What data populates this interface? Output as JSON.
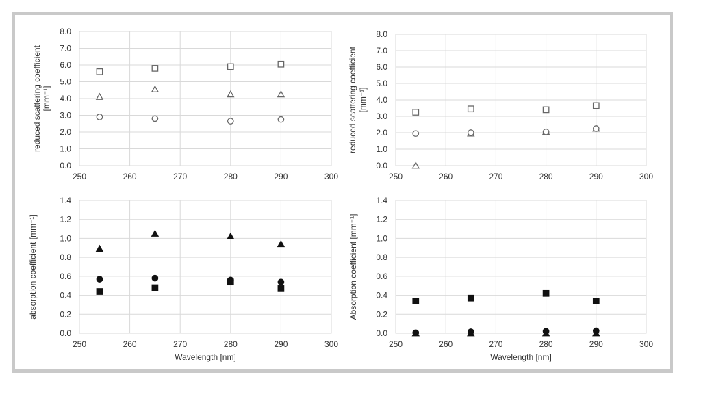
{
  "chart_data": [
    {
      "type": "scatter",
      "title": "",
      "ylabel": "reduced scattering coefficient",
      "ylabel_unit": "[mm⁻¹]",
      "xlabel": "",
      "xlim": [
        250,
        300
      ],
      "ylim": [
        0,
        8
      ],
      "xticks": [
        "250",
        "260",
        "270",
        "280",
        "290",
        "300"
      ],
      "yticks": [
        "0.0",
        "1.0",
        "2.0",
        "3.0",
        "4.0",
        "5.0",
        "6.0",
        "7.0",
        "8.0"
      ],
      "grid": true,
      "series": [
        {
          "marker": "square-open",
          "x": [
            254,
            265,
            280,
            290
          ],
          "y": [
            5.6,
            5.8,
            5.9,
            6.05
          ]
        },
        {
          "marker": "triangle-open",
          "x": [
            254,
            265,
            280,
            290
          ],
          "y": [
            4.1,
            4.55,
            4.25,
            4.25
          ]
        },
        {
          "marker": "circle-open",
          "x": [
            254,
            265,
            280,
            290
          ],
          "y": [
            2.9,
            2.8,
            2.65,
            2.75
          ]
        }
      ]
    },
    {
      "type": "scatter",
      "title": "",
      "ylabel": "reduced scattering coefficient",
      "ylabel_unit": "[mm⁻¹]",
      "xlabel": "",
      "xlim": [
        250,
        300
      ],
      "ylim": [
        0,
        8
      ],
      "xticks": [
        "250",
        "260",
        "270",
        "280",
        "290",
        "300"
      ],
      "yticks": [
        "0.0",
        "1.0",
        "2.0",
        "3.0",
        "4.0",
        "5.0",
        "6.0",
        "7.0",
        "8.0"
      ],
      "grid": true,
      "series": [
        {
          "marker": "square-open",
          "x": [
            254,
            265,
            280,
            290
          ],
          "y": [
            3.25,
            3.45,
            3.4,
            3.65
          ]
        },
        {
          "marker": "triangle-open",
          "x": [
            254,
            265,
            280,
            290
          ],
          "y": [
            0.0,
            1.95,
            2.05,
            2.25
          ]
        },
        {
          "marker": "circle-open",
          "x": [
            254,
            265,
            280,
            290
          ],
          "y": [
            1.95,
            2.0,
            2.05,
            2.25
          ]
        }
      ]
    },
    {
      "type": "scatter",
      "title": "",
      "ylabel": "absorption coefficient [mm⁻¹]",
      "ylabel_unit": "",
      "xlabel": "Wavelength [nm]",
      "xlim": [
        250,
        300
      ],
      "ylim": [
        0,
        1.4
      ],
      "xticks": [
        "250",
        "260",
        "270",
        "280",
        "290",
        "300"
      ],
      "yticks": [
        "0.0",
        "0.2",
        "0.4",
        "0.6",
        "0.8",
        "1.0",
        "1.2",
        "1.4"
      ],
      "grid": true,
      "series": [
        {
          "marker": "triangle-filled",
          "x": [
            254,
            265,
            280,
            290
          ],
          "y": [
            0.89,
            1.05,
            1.02,
            0.94
          ]
        },
        {
          "marker": "circle-filled",
          "x": [
            254,
            265,
            280,
            290
          ],
          "y": [
            0.57,
            0.58,
            0.56,
            0.54
          ]
        },
        {
          "marker": "square-filled",
          "x": [
            254,
            265,
            280,
            290
          ],
          "y": [
            0.44,
            0.48,
            0.54,
            0.47
          ]
        }
      ]
    },
    {
      "type": "scatter",
      "title": "",
      "ylabel": "Absorption  coefficient [mm⁻¹]",
      "ylabel_unit": "",
      "xlabel": "Wavelength [nm]",
      "xlim": [
        250,
        300
      ],
      "ylim": [
        0,
        1.4
      ],
      "xticks": [
        "250",
        "260",
        "270",
        "280",
        "290",
        "300"
      ],
      "yticks": [
        "0.0",
        "0.2",
        "0.4",
        "0.6",
        "0.8",
        "1.0",
        "1.2",
        "1.4"
      ],
      "grid": true,
      "series": [
        {
          "marker": "square-filled",
          "x": [
            254,
            265,
            280,
            290
          ],
          "y": [
            0.34,
            0.37,
            0.42,
            0.34
          ]
        },
        {
          "marker": "circle-filled",
          "x": [
            254,
            265,
            280,
            290
          ],
          "y": [
            0.005,
            0.015,
            0.02,
            0.025
          ]
        },
        {
          "marker": "triangle-filled",
          "x": [
            254,
            265,
            280,
            290
          ],
          "y": [
            0.0,
            0.0,
            0.0,
            0.0
          ]
        }
      ]
    }
  ]
}
